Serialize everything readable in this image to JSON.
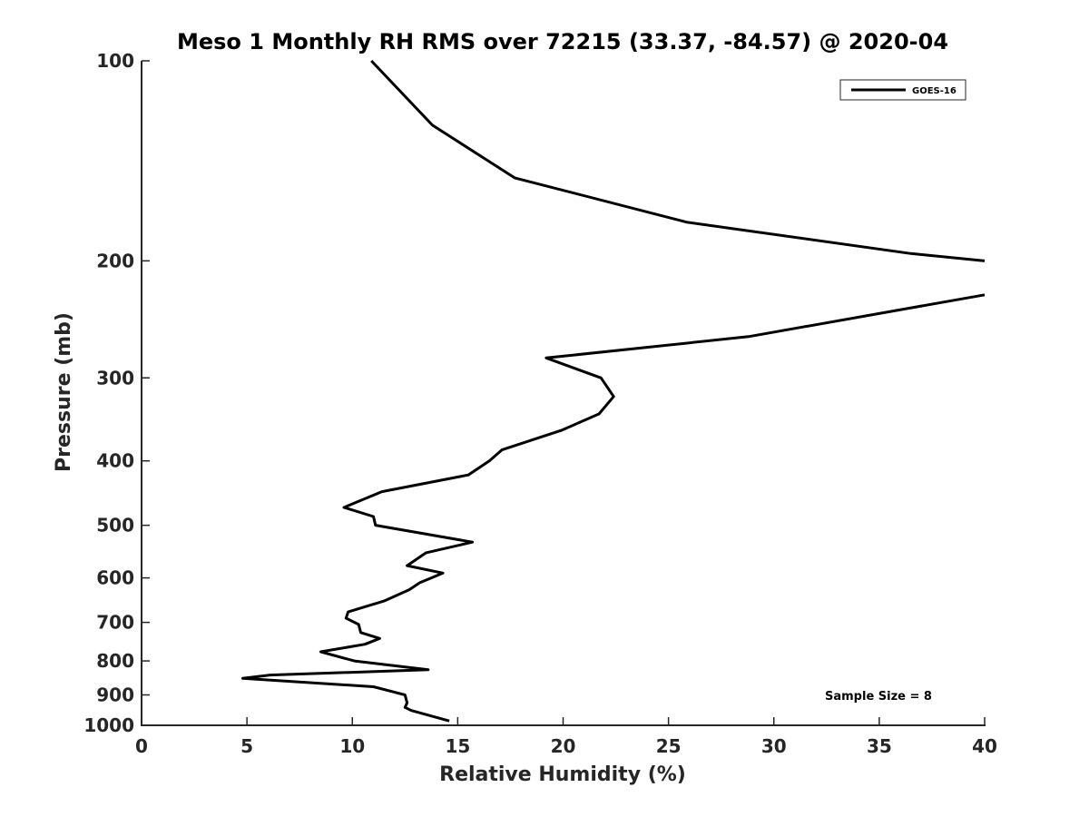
{
  "chart_data": {
    "type": "line",
    "title": "Meso 1 Monthly RH RMS over 72215 (33.37, -84.57) @ 2020-04",
    "xlabel": "Relative Humidity (%)",
    "ylabel": "Pressure (mb)",
    "xlim": [
      0,
      40
    ],
    "ylim": [
      100,
      1000
    ],
    "yscale": "log",
    "yaxis_reversed": true,
    "grid": false,
    "legend_position": "top-right",
    "xticks": [
      "0",
      "5",
      "10",
      "15",
      "20",
      "25",
      "30",
      "35",
      "40"
    ],
    "yticks": [
      "100",
      "200",
      "300",
      "400",
      "500",
      "600",
      "700",
      "800",
      "900",
      "1000"
    ],
    "annotation": "Sample Size = 8",
    "series": [
      {
        "name": "GOES-16",
        "color": "#000000",
        "points": [
          {
            "x": 10.9,
            "y": 100
          },
          {
            "x": 13.8,
            "y": 125
          },
          {
            "x": 17.7,
            "y": 150
          },
          {
            "x": 25.9,
            "y": 175
          },
          {
            "x": 36.5,
            "y": 195
          },
          {
            "x": 40.0,
            "y": 200
          },
          {
            "x": null,
            "y": null
          },
          {
            "x": 40.0,
            "y": 225
          },
          {
            "x": 28.8,
            "y": 260
          },
          {
            "x": 19.2,
            "y": 280
          },
          {
            "x": 21.8,
            "y": 300
          },
          {
            "x": 22.4,
            "y": 320
          },
          {
            "x": 21.7,
            "y": 340
          },
          {
            "x": 19.9,
            "y": 360
          },
          {
            "x": 17.1,
            "y": 385
          },
          {
            "x": 16.5,
            "y": 400
          },
          {
            "x": 15.5,
            "y": 420
          },
          {
            "x": 11.4,
            "y": 445
          },
          {
            "x": 9.6,
            "y": 470
          },
          {
            "x": 11.0,
            "y": 485
          },
          {
            "x": 11.1,
            "y": 500
          },
          {
            "x": 15.7,
            "y": 530
          },
          {
            "x": 13.5,
            "y": 550
          },
          {
            "x": 12.6,
            "y": 575
          },
          {
            "x": 14.3,
            "y": 590
          },
          {
            "x": 13.2,
            "y": 610
          },
          {
            "x": 12.7,
            "y": 625
          },
          {
            "x": 11.5,
            "y": 650
          },
          {
            "x": 9.8,
            "y": 675
          },
          {
            "x": 9.7,
            "y": 690
          },
          {
            "x": 10.3,
            "y": 705
          },
          {
            "x": 10.4,
            "y": 725
          },
          {
            "x": 11.3,
            "y": 740
          },
          {
            "x": 10.6,
            "y": 755
          },
          {
            "x": 8.5,
            "y": 775
          },
          {
            "x": 10.1,
            "y": 800
          },
          {
            "x": 13.6,
            "y": 825
          },
          {
            "x": 6.1,
            "y": 840
          },
          {
            "x": 4.8,
            "y": 850
          },
          {
            "x": 11.0,
            "y": 875
          },
          {
            "x": 12.5,
            "y": 900
          },
          {
            "x": 12.6,
            "y": 925
          },
          {
            "x": 12.5,
            "y": 940
          },
          {
            "x": 12.8,
            "y": 950
          },
          {
            "x": 14.6,
            "y": 985
          }
        ]
      }
    ]
  }
}
